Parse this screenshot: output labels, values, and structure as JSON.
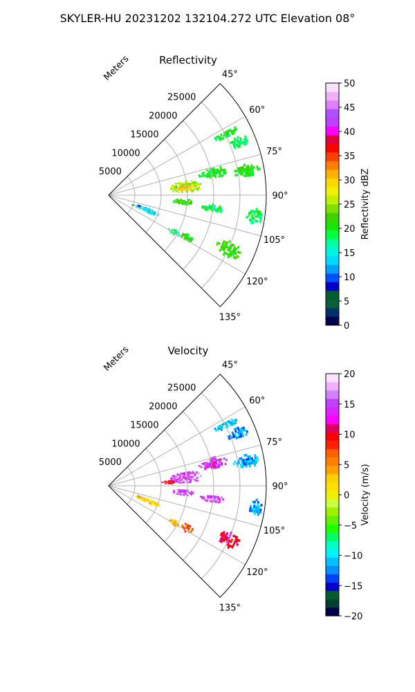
{
  "figure": {
    "title": "SKYLER-HU  20231202  132104.272 UTC Elevation 08°"
  },
  "chart_data": [
    {
      "type": "heatmap",
      "title": "Reflectivity",
      "radial_label": "Meters",
      "range_ticks": [
        "5000",
        "10000",
        "15000",
        "20000",
        "25000"
      ],
      "range_max_m": 30000,
      "azimuth_range_deg": [
        45,
        135
      ],
      "azimuth_ticks": [
        "45°",
        "60°",
        "75°",
        "90°",
        "105°",
        "120°",
        "135°"
      ],
      "grid": true,
      "colorbar": {
        "label": "Reflectivity dBZ",
        "range": [
          0,
          50
        ],
        "ticks": [
          "0",
          "5",
          "10",
          "15",
          "20",
          "25",
          "30",
          "35",
          "40",
          "45",
          "50"
        ],
        "colors": [
          "#00004a",
          "#00306e",
          "#0a5e3a",
          "#005e2e",
          "#0000c8",
          "#0050ff",
          "#00a0ff",
          "#00d8ff",
          "#00f5e0",
          "#00ffa0",
          "#00ff40",
          "#1ae600",
          "#40d200",
          "#80e000",
          "#c0f000",
          "#f0f000",
          "#ffd800",
          "#ffb000",
          "#ff8000",
          "#ff4000",
          "#ff0000",
          "#e00040",
          "#ff00ff",
          "#c040ff",
          "#b050ff",
          "#e080ff",
          "#f0b0f8",
          "#fae0fc"
        ]
      },
      "echoes": [
        {
          "az": [
            60.5,
            64.0
          ],
          "r": [
            22500,
            27500
          ],
          "value": 19
        },
        {
          "az": [
            65.5,
            70.0
          ],
          "r": [
            24500,
            28500
          ],
          "value": 18
        },
        {
          "az": [
            74.5,
            80.5
          ],
          "r": [
            17500,
            23000
          ],
          "value": 20
        },
        {
          "az": [
            77.0,
            82.0
          ],
          "r": [
            24000,
            29000
          ],
          "value": 21
        },
        {
          "az": [
            79.0,
            88.0
          ],
          "r": [
            11500,
            17500
          ],
          "value": 25
        },
        {
          "az": [
            82.0,
            86.5
          ],
          "r": [
            13000,
            16000
          ],
          "value": 30
        },
        {
          "az": [
            92.0,
            97.0
          ],
          "r": [
            12000,
            16000
          ],
          "value": 21
        },
        {
          "az": [
            94.5,
            99.0
          ],
          "r": [
            17500,
            22000
          ],
          "value": 19
        },
        {
          "az": [
            95.0,
            101.0
          ],
          "r": [
            26500,
            29500
          ],
          "value": 19
        },
        {
          "az": [
            107.5,
            114.0
          ],
          "r": [
            5000,
            10500
          ],
          "value": 14
        },
        {
          "az": [
            107.0,
            110.0
          ],
          "r": [
            5500,
            6500
          ],
          "value": 7
        },
        {
          "az": [
            110.0,
            113.0
          ],
          "r": [
            4500,
            5200
          ],
          "value": 3
        },
        {
          "az": [
            117.0,
            121.0
          ],
          "r": [
            13000,
            15500
          ],
          "value": 17
        },
        {
          "az": [
            115.0,
            120.5
          ],
          "r": [
            15500,
            18000
          ],
          "value": 21
        },
        {
          "az": [
            110.5,
            117.0
          ],
          "r": [
            22500,
            27500
          ],
          "value": 22
        }
      ]
    },
    {
      "type": "heatmap",
      "title": "Velocity",
      "radial_label": "Meters",
      "range_ticks": [
        "5000",
        "10000",
        "15000",
        "20000",
        "25000"
      ],
      "range_max_m": 30000,
      "azimuth_range_deg": [
        45,
        135
      ],
      "azimuth_ticks": [
        "45°",
        "60°",
        "75°",
        "90°",
        "105°",
        "120°",
        "135°"
      ],
      "grid": true,
      "colorbar": {
        "label": "Velocity (m/s)",
        "range": [
          -20,
          20
        ],
        "ticks": [
          "-20",
          "-15",
          "-10",
          "-5",
          "0",
          "5",
          "10",
          "15",
          "20"
        ],
        "colors": [
          "#00004a",
          "#004030",
          "#005e2e",
          "#0000c8",
          "#0040ff",
          "#0090ff",
          "#00c0ff",
          "#00f0ff",
          "#00ffc0",
          "#00ff60",
          "#20ff00",
          "#60f000",
          "#a0f000",
          "#c8ff40",
          "#f0f000",
          "#ffe000",
          "#ffd000",
          "#ffa000",
          "#ff8000",
          "#ff6000",
          "#ff2000",
          "#ff0000",
          "#e00060",
          "#ff00ff",
          "#e020ff",
          "#c040ff",
          "#d080ff",
          "#f0b0ff",
          "#fbe0ff"
        ]
      },
      "echoes": [
        {
          "az": [
            60.5,
            64.0
          ],
          "r": [
            22500,
            27500
          ],
          "value": -11
        },
        {
          "az": [
            65.5,
            70.0
          ],
          "r": [
            24500,
            28500
          ],
          "value": -12
        },
        {
          "az": [
            74.5,
            80.5
          ],
          "r": [
            17500,
            23000
          ],
          "value": 14
        },
        {
          "az": [
            77.0,
            82.0
          ],
          "r": [
            24000,
            29000
          ],
          "value": -11
        },
        {
          "az": [
            79.0,
            88.0
          ],
          "r": [
            11500,
            17500
          ],
          "value": 15
        },
        {
          "az": [
            84.0,
            88.0
          ],
          "r": [
            10000,
            12500
          ],
          "value": 10
        },
        {
          "az": [
            92.0,
            97.0
          ],
          "r": [
            12000,
            16000
          ],
          "value": 15
        },
        {
          "az": [
            94.5,
            99.0
          ],
          "r": [
            17500,
            22000
          ],
          "value": 15
        },
        {
          "az": [
            95.0,
            101.0
          ],
          "r": [
            26500,
            29500
          ],
          "value": -12
        },
        {
          "az": [
            107.5,
            114.0
          ],
          "r": [
            5000,
            10500
          ],
          "value": 2
        },
        {
          "az": [
            107.0,
            110.0
          ],
          "r": [
            5500,
            6500
          ],
          "value": 5
        },
        {
          "az": [
            117.0,
            121.0
          ],
          "r": [
            13000,
            15500
          ],
          "value": 3
        },
        {
          "az": [
            115.0,
            120.5
          ],
          "r": [
            15500,
            18000
          ],
          "value": 7
        },
        {
          "az": [
            110.5,
            117.0
          ],
          "r": [
            22500,
            27500
          ],
          "value": 10
        }
      ]
    }
  ]
}
